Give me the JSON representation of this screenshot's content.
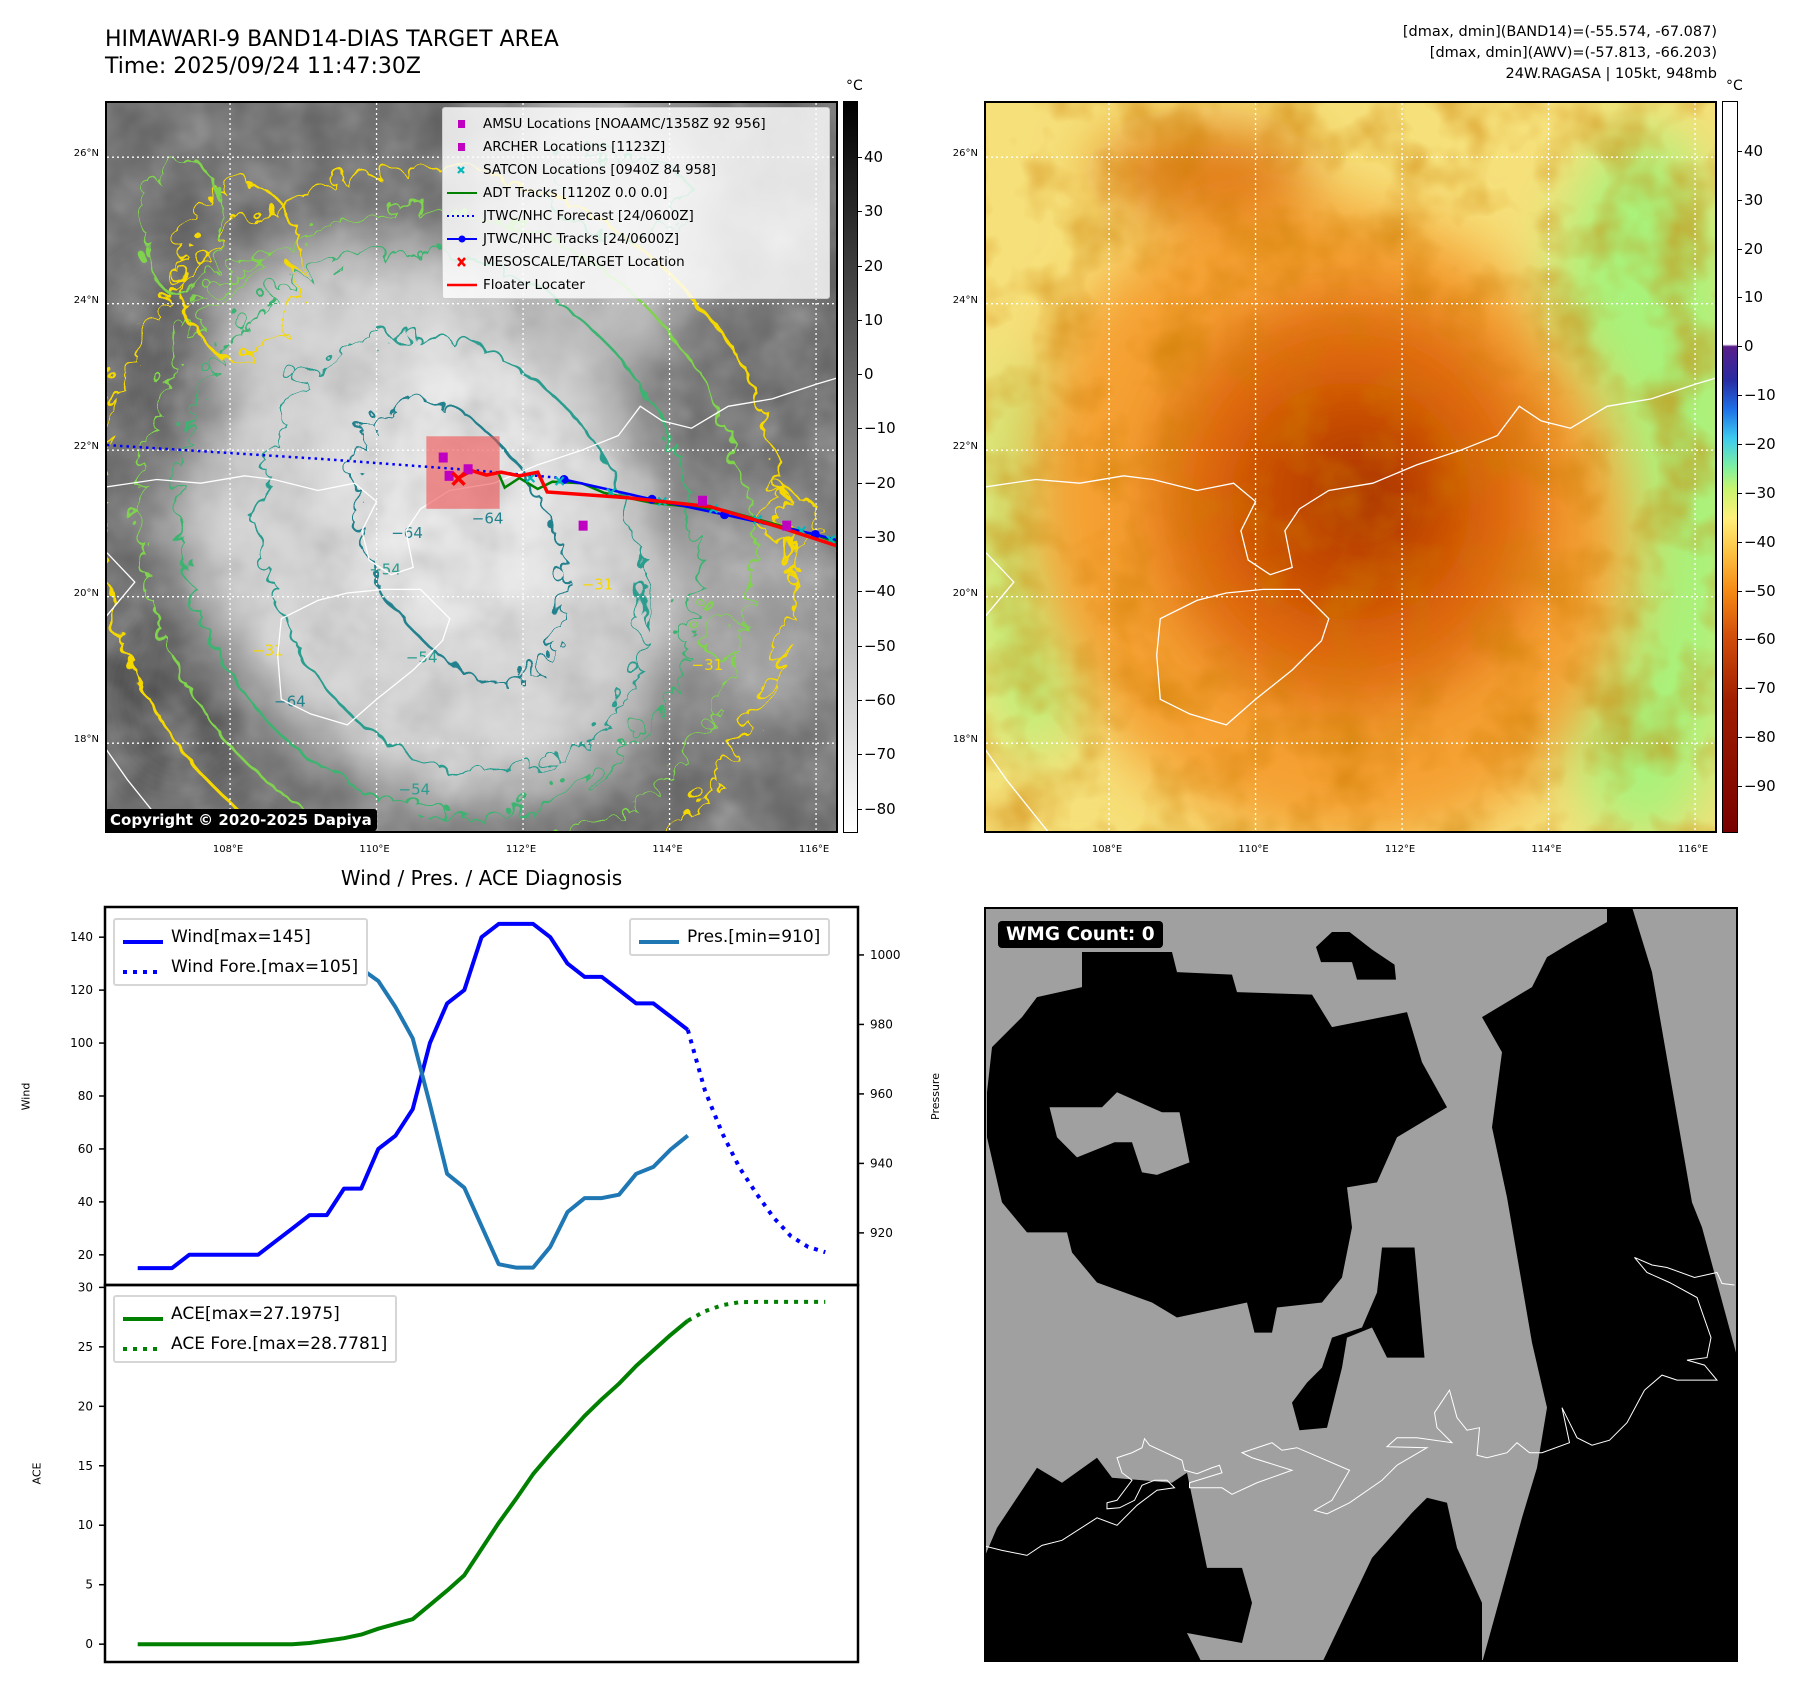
{
  "header": {
    "title_line1": "HIMAWARI-9 BAND14-DIAS TARGET AREA",
    "title_line2": "Time: 2025/09/24 11:47:30Z",
    "info_line1": "[dmax, dmin](BAND14)=(-55.574, -67.087)",
    "info_line2": "[dmax, dmin](AWV)=(-57.813, -66.203)",
    "info_line3": "24W.RAGASA | 105kt, 948mb"
  },
  "map1": {
    "colorbar_unit": "°C",
    "colorbar_ticks": [
      "40",
      "30",
      "20",
      "10",
      "0",
      "−10",
      "−20",
      "−30",
      "−40",
      "−50",
      "−60",
      "−70",
      "−80"
    ],
    "colorbar_values": [
      40,
      30,
      20,
      10,
      0,
      -10,
      -20,
      -30,
      -40,
      -50,
      -60,
      -70,
      -80
    ],
    "colorbar_range": [
      50.3,
      -84.5
    ],
    "lat_labels": [
      "26°N",
      "24°N",
      "22°N",
      "20°N",
      "18°N"
    ],
    "lat_values": [
      26,
      24,
      22,
      20,
      18
    ],
    "lon_labels": [
      "108°E",
      "110°E",
      "112°E",
      "114°E",
      "116°E"
    ],
    "lon_values": [
      108,
      110,
      112,
      114,
      116
    ],
    "legend": [
      {
        "label": "AMSU Locations [NOAAMC/1358Z 92 956]",
        "color": "#c000c0",
        "symbol": "square"
      },
      {
        "label": "ARCHER Locations [1123Z]",
        "color": "#c000c0",
        "symbol": "square"
      },
      {
        "label": "SATCON Locations [0940Z 84 958]",
        "color": "#00b8b8",
        "symbol": "x"
      },
      {
        "label": "ADT Tracks [1120Z 0.0 0.0]",
        "color": "#008000",
        "symbol": "line"
      },
      {
        "label": "JTWC/NHC Forecast [24/0600Z]",
        "color": "#0000ff",
        "symbol": "dotted"
      },
      {
        "label": "JTWC/NHC Tracks [24/0600Z]",
        "color": "#0000ff",
        "symbol": "line-dot"
      },
      {
        "label": "MESOSCALE/TARGET Location",
        "color": "#ff0000",
        "symbol": "x"
      },
      {
        "label": "Floater Locater",
        "color": "#ff0000",
        "symbol": "line"
      }
    ],
    "contour_labels": [
      "−64",
      "−64",
      "−64",
      "−54",
      "−54",
      "−54",
      "−31",
      "−31",
      "−31"
    ],
    "copyright": "Copyright © 2020-2025 Dapiya",
    "tracks": {
      "jtwc_forecast": [
        [
          106.32,
          22.07
        ],
        [
          109.26,
          21.88
        ],
        [
          111.28,
          21.73
        ],
        [
          112.52,
          21.62
        ]
      ],
      "jtwc_track": [
        [
          112.56,
          21.6
        ],
        [
          113.76,
          21.33
        ],
        [
          114.75,
          21.12
        ],
        [
          115.99,
          20.85
        ],
        [
          116.33,
          20.76
        ]
      ],
      "adt_track": [
        [
          111.67,
          21.67
        ],
        [
          111.75,
          21.49
        ],
        [
          111.95,
          21.62
        ],
        [
          112.2,
          21.47
        ],
        [
          112.4,
          21.57
        ],
        [
          112.8,
          21.55
        ],
        [
          113.1,
          21.42
        ],
        [
          113.76,
          21.28
        ],
        [
          114.75,
          21.18
        ],
        [
          116.06,
          20.82
        ],
        [
          116.33,
          20.72
        ]
      ],
      "floater": [
        [
          111.09,
          21.61
        ],
        [
          111.3,
          21.72
        ],
        [
          111.5,
          21.66
        ],
        [
          111.7,
          21.7
        ],
        [
          111.95,
          21.65
        ],
        [
          112.2,
          21.7
        ],
        [
          112.33,
          21.43
        ],
        [
          113.43,
          21.35
        ],
        [
          114.55,
          21.23
        ],
        [
          115.5,
          20.95
        ],
        [
          116.33,
          20.68
        ]
      ],
      "amsu_archer_points": [
        [
          110.91,
          21.9
        ],
        [
          110.99,
          21.65
        ],
        [
          111.25,
          21.74
        ],
        [
          112.82,
          20.97
        ],
        [
          114.45,
          21.31
        ],
        [
          115.6,
          20.97
        ]
      ],
      "satcon_points": [
        [
          112.1,
          21.62
        ],
        [
          112.5,
          21.58
        ],
        [
          113.2,
          21.42
        ],
        [
          113.9,
          21.3
        ],
        [
          114.6,
          21.2
        ],
        [
          115.2,
          21.05
        ],
        [
          115.8,
          20.9
        ],
        [
          116.2,
          20.78
        ]
      ],
      "target_point": [
        111.12,
        21.61
      ],
      "target_box": [
        [
          110.68,
          22.19
        ],
        [
          111.68,
          21.2
        ]
      ]
    }
  },
  "map2": {
    "colorbar_unit": "°C",
    "colorbar_ticks": [
      "40",
      "30",
      "20",
      "10",
      "0",
      "−10",
      "−20",
      "−30",
      "−40",
      "−50",
      "−60",
      "−70",
      "−80",
      "−90"
    ],
    "colorbar_values": [
      40,
      30,
      20,
      10,
      0,
      -10,
      -20,
      -30,
      -40,
      -50,
      -60,
      -70,
      -80,
      -90
    ],
    "colorbar_range": [
      50.2,
      -99.6
    ],
    "lat_labels": [
      "26°N",
      "24°N",
      "22°N",
      "20°N",
      "18°N"
    ],
    "lat_values": [
      26,
      24,
      22,
      20,
      18
    ],
    "lon_labels": [
      "108°E",
      "110°E",
      "112°E",
      "114°E",
      "116°E"
    ],
    "lon_values": [
      108,
      110,
      112,
      114,
      116
    ]
  },
  "wmg": {
    "label": "WMG Count: 0"
  },
  "chart_data": [
    {
      "type": "line",
      "title": "Wind / Pres. / ACE Diagnosis",
      "ylabel": "Wind",
      "ylabel_right": "Pressure",
      "xlim": [
        -1.9,
        41.9
      ],
      "ylim": [
        8.6,
        151.4
      ],
      "ylim_right": [
        905,
        1013.8
      ],
      "yticks": [
        20,
        40,
        60,
        80,
        100,
        120,
        140
      ],
      "yticks_right": [
        920,
        940,
        960,
        980,
        1000
      ],
      "grid": false,
      "legend_left": "top-left",
      "legend_right": "top-right",
      "series": [
        {
          "name": "Wind[max=145]",
          "axis": "left",
          "style": "solid",
          "color": "#0000ff",
          "x_start": 0,
          "values": [
            15,
            15,
            15,
            20,
            20,
            20,
            20,
            20,
            25,
            30,
            35,
            35,
            45,
            45,
            60,
            65,
            75,
            100,
            115,
            120,
            140,
            145,
            145,
            145,
            140,
            130,
            125,
            125,
            120,
            115,
            115,
            110,
            105
          ]
        },
        {
          "name": "Wind Fore.[max=105]",
          "axis": "left",
          "style": "dotted",
          "color": "#0000ff",
          "x_start": 32,
          "values": [
            105,
            82,
            66,
            53,
            43,
            34,
            27,
            23,
            21
          ]
        },
        {
          "name": "Pres.[min=910]",
          "axis": "right",
          "style": "solid",
          "color": "#1f77b4",
          "x_start": 0,
          "values": [
            1009,
            1007,
            1007,
            1007,
            1007,
            1008.5,
            1008.5,
            1008.5,
            1006,
            1005,
            1004,
            1000,
            998,
            996,
            992.5,
            985,
            976,
            957,
            937,
            933,
            922,
            911,
            910,
            910,
            916,
            926,
            930,
            930,
            931,
            937,
            939,
            944,
            948
          ]
        }
      ]
    },
    {
      "type": "line",
      "ylabel": "ACE",
      "xlim": [
        -1.9,
        41.9
      ],
      "ylim": [
        -1.5,
        30.2
      ],
      "yticks": [
        0,
        5,
        10,
        15,
        20,
        25,
        30
      ],
      "grid": false,
      "legend": "top-left",
      "series": [
        {
          "name": "ACE[max=27.1975]",
          "style": "solid",
          "color": "#008000",
          "x_start": 0,
          "values": [
            0,
            0,
            0,
            0,
            0,
            0,
            0,
            0,
            0,
            0,
            0.1,
            0.3,
            0.5,
            0.8,
            1.3,
            1.7,
            2.1,
            3.3,
            4.5,
            5.8,
            8.0,
            10.2,
            12.2,
            14.3,
            16.0,
            17.6,
            19.2,
            20.6,
            21.9,
            23.4,
            24.7,
            26.0,
            27.2
          ]
        },
        {
          "name": "ACE Fore.[max=28.7781]",
          "style": "dotted",
          "color": "#008000",
          "x_start": 32,
          "values": [
            27.2,
            28.0,
            28.5,
            28.75,
            28.78,
            28.78,
            28.78,
            28.78,
            28.78
          ]
        }
      ]
    }
  ]
}
